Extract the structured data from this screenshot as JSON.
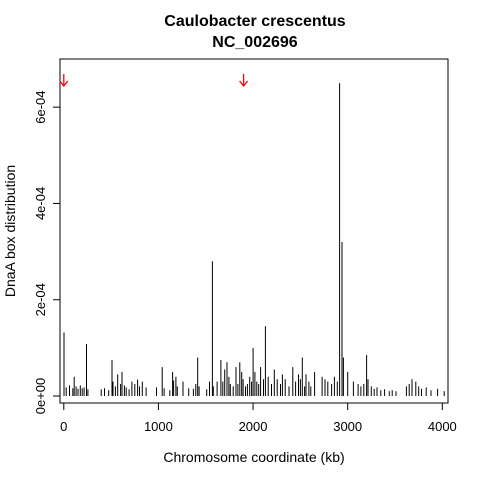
{
  "chart_data": {
    "type": "bar",
    "title": "Caulobacter crescentus",
    "subtitle": "NC_002696",
    "xlabel": "Chromosome coordinate (kb)",
    "ylabel": "DnaA box distribution",
    "xlim": [
      -40,
      4060
    ],
    "ylim": [
      -1.45e-05,
      0.0007
    ],
    "x_ticks": [
      0,
      1000,
      2000,
      3000,
      4000
    ],
    "x_tick_labels": [
      "0",
      "1000",
      "2000",
      "3000",
      "4000"
    ],
    "y_ticks": [
      0,
      0.0002,
      0.0004,
      0.0006
    ],
    "y_tick_labels": [
      "0e+00",
      "2e-04",
      "4e-04",
      "6e-04"
    ],
    "grid": false,
    "bar_color": "#000000",
    "arrow_color": "#ff0000",
    "arrows": [
      {
        "x": 0,
        "direction": "down"
      },
      {
        "x": 1900,
        "direction": "down"
      }
    ],
    "bars": {
      "x": [
        2,
        25,
        60,
        95,
        110,
        130,
        150,
        175,
        195,
        215,
        240,
        255,
        395,
        430,
        475,
        510,
        520,
        545,
        570,
        600,
        615,
        640,
        660,
        690,
        720,
        750,
        780,
        800,
        830,
        870,
        980,
        1040,
        1060,
        1120,
        1150,
        1160,
        1185,
        1200,
        1260,
        1320,
        1370,
        1395,
        1415,
        1430,
        1510,
        1540,
        1570,
        1580,
        1620,
        1660,
        1680,
        1700,
        1725,
        1745,
        1760,
        1790,
        1820,
        1840,
        1860,
        1880,
        1895,
        1920,
        1940,
        1965,
        1985,
        2000,
        2020,
        2040,
        2060,
        2080,
        2110,
        2130,
        2160,
        2195,
        2225,
        2255,
        2290,
        2310,
        2340,
        2380,
        2420,
        2450,
        2480,
        2500,
        2520,
        2545,
        2560,
        2590,
        2610,
        2650,
        2730,
        2760,
        2790,
        2830,
        2860,
        2890,
        2915,
        2940,
        2955,
        3000,
        3060,
        3110,
        3140,
        3170,
        3200,
        3215,
        3250,
        3280,
        3310,
        3350,
        3390,
        3440,
        3470,
        3510,
        3620,
        3650,
        3680,
        3720,
        3750,
        3780,
        3830,
        3880,
        3950,
        4020
      ],
      "values": [
        0.000132,
        1.8e-05,
        2.2e-05,
        1.6e-05,
        4e-05,
        2e-05,
        1.5e-05,
        2.2e-05,
        1.6e-05,
        1.8e-05,
        0.000108,
        1.4e-05,
        1.4e-05,
        1.6e-05,
        1.2e-05,
        7.5e-05,
        3e-05,
        2e-05,
        4.5e-05,
        2.5e-05,
        5e-05,
        2.2e-05,
        1.8e-05,
        1.4e-05,
        3e-05,
        2.5e-05,
        3.4e-05,
        2e-05,
        3e-05,
        1.8e-05,
        1.8e-05,
        6e-05,
        1.6e-05,
        1.2e-05,
        5e-05,
        3.2e-05,
        4e-05,
        2e-05,
        3e-05,
        1.6e-05,
        1.5e-05,
        2.5e-05,
        8e-05,
        2e-05,
        1.4e-05,
        3e-05,
        0.00028,
        2e-05,
        3e-05,
        7.5e-05,
        3e-05,
        5.5e-05,
        7e-05,
        4e-05,
        2.5e-05,
        2e-05,
        6e-05,
        2.5e-05,
        7e-05,
        5e-05,
        3.5e-05,
        2e-05,
        2.5e-05,
        4e-05,
        3e-05,
        0.0001,
        5e-05,
        3e-05,
        2.5e-05,
        6e-05,
        3.5e-05,
        0.000145,
        4e-05,
        2.5e-05,
        5.5e-05,
        3.5e-05,
        2.5e-05,
        4.5e-05,
        3.5e-05,
        2e-05,
        6e-05,
        3e-05,
        4.5e-05,
        3.5e-05,
        8e-05,
        2e-05,
        4.5e-05,
        3e-05,
        2e-05,
        5e-05,
        4e-05,
        3.5e-05,
        3e-05,
        2.5e-05,
        4e-05,
        3e-05,
        0.00065,
        0.00032,
        8e-05,
        5e-05,
        3e-05,
        2.5e-05,
        2e-05,
        2.5e-05,
        8.5e-05,
        3.5e-05,
        2e-05,
        1.5e-05,
        1.8e-05,
        1.2e-05,
        1.4e-05,
        1e-05,
        1.2e-05,
        1e-05,
        2e-05,
        2.5e-05,
        3.5e-05,
        3e-05,
        2e-05,
        1.5e-05,
        1.8e-05,
        1.2e-05,
        1.5e-05,
        1e-05
      ]
    }
  }
}
